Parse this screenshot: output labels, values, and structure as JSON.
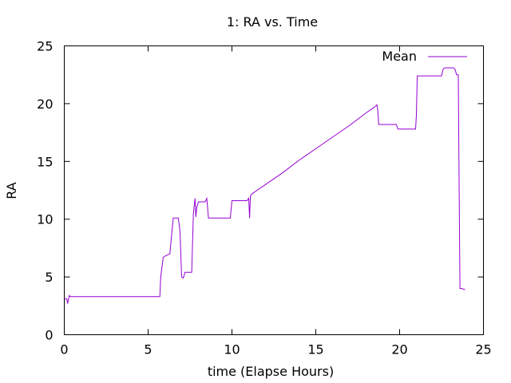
{
  "chart_data": {
    "type": "line",
    "title": "1: RA vs. Time",
    "xlabel": "time (Elapse Hours)",
    "ylabel": "RA",
    "xlim": [
      0,
      25
    ],
    "ylim": [
      0,
      25
    ],
    "x_ticks": [
      0,
      5,
      10,
      15,
      20,
      25
    ],
    "y_ticks": [
      0,
      5,
      10,
      15,
      20,
      25
    ],
    "x_tick_labels": [
      "0",
      "5",
      "10",
      "15",
      "20",
      "25"
    ],
    "y_tick_labels": [
      "0",
      "5",
      "10",
      "15",
      "20",
      "25"
    ],
    "grid": false,
    "legend": {
      "position": "top-right"
    },
    "series": [
      {
        "name": "Mean",
        "color": "#9400d3",
        "x": [
          0,
          0.15,
          0.2,
          0.3,
          0.35,
          0.5,
          1.0,
          3.0,
          5.7,
          5.75,
          5.9,
          6.0,
          6.3,
          6.35,
          6.5,
          6.7,
          6.8,
          6.9,
          7.0,
          7.1,
          7.2,
          7.4,
          7.6,
          7.7,
          7.8,
          7.85,
          7.9,
          8.0,
          8.1,
          8.3,
          8.4,
          8.5,
          8.6,
          8.7,
          9.0,
          9.5,
          9.9,
          10.0,
          10.5,
          10.9,
          11.0,
          11.05,
          11.1,
          11.2,
          11.5,
          12.0,
          13.0,
          14.0,
          15.0,
          16.0,
          17.0,
          18.0,
          18.5,
          18.65,
          18.7,
          18.75,
          18.8,
          19.5,
          19.8,
          19.9,
          20.5,
          20.95,
          21.0,
          21.05,
          21.1,
          21.5,
          22.0,
          22.5,
          22.6,
          22.7,
          23.0,
          23.2,
          23.3,
          23.4,
          23.5,
          23.55,
          23.6,
          23.7,
          23.9
        ],
        "y": [
          3.1,
          3.1,
          2.7,
          3.4,
          3.3,
          3.3,
          3.3,
          3.3,
          3.3,
          5.0,
          6.7,
          6.8,
          7.0,
          7.8,
          10.1,
          10.1,
          10.1,
          9.0,
          5.0,
          4.9,
          5.4,
          5.4,
          5.4,
          10.5,
          11.8,
          10.2,
          11.0,
          11.5,
          11.5,
          11.5,
          11.5,
          11.8,
          10.1,
          10.1,
          10.1,
          10.1,
          10.1,
          11.6,
          11.6,
          11.6,
          11.8,
          10.1,
          12.0,
          12.2,
          12.5,
          13.0,
          14.0,
          15.1,
          16.1,
          17.1,
          18.1,
          19.2,
          19.7,
          19.9,
          19.4,
          18.2,
          18.2,
          18.2,
          18.2,
          17.8,
          17.8,
          17.8,
          19.0,
          22.4,
          22.4,
          22.4,
          22.4,
          22.4,
          23.0,
          23.1,
          23.1,
          23.1,
          23.0,
          22.5,
          22.5,
          13.2,
          4.0,
          4.0,
          3.9
        ]
      }
    ]
  }
}
